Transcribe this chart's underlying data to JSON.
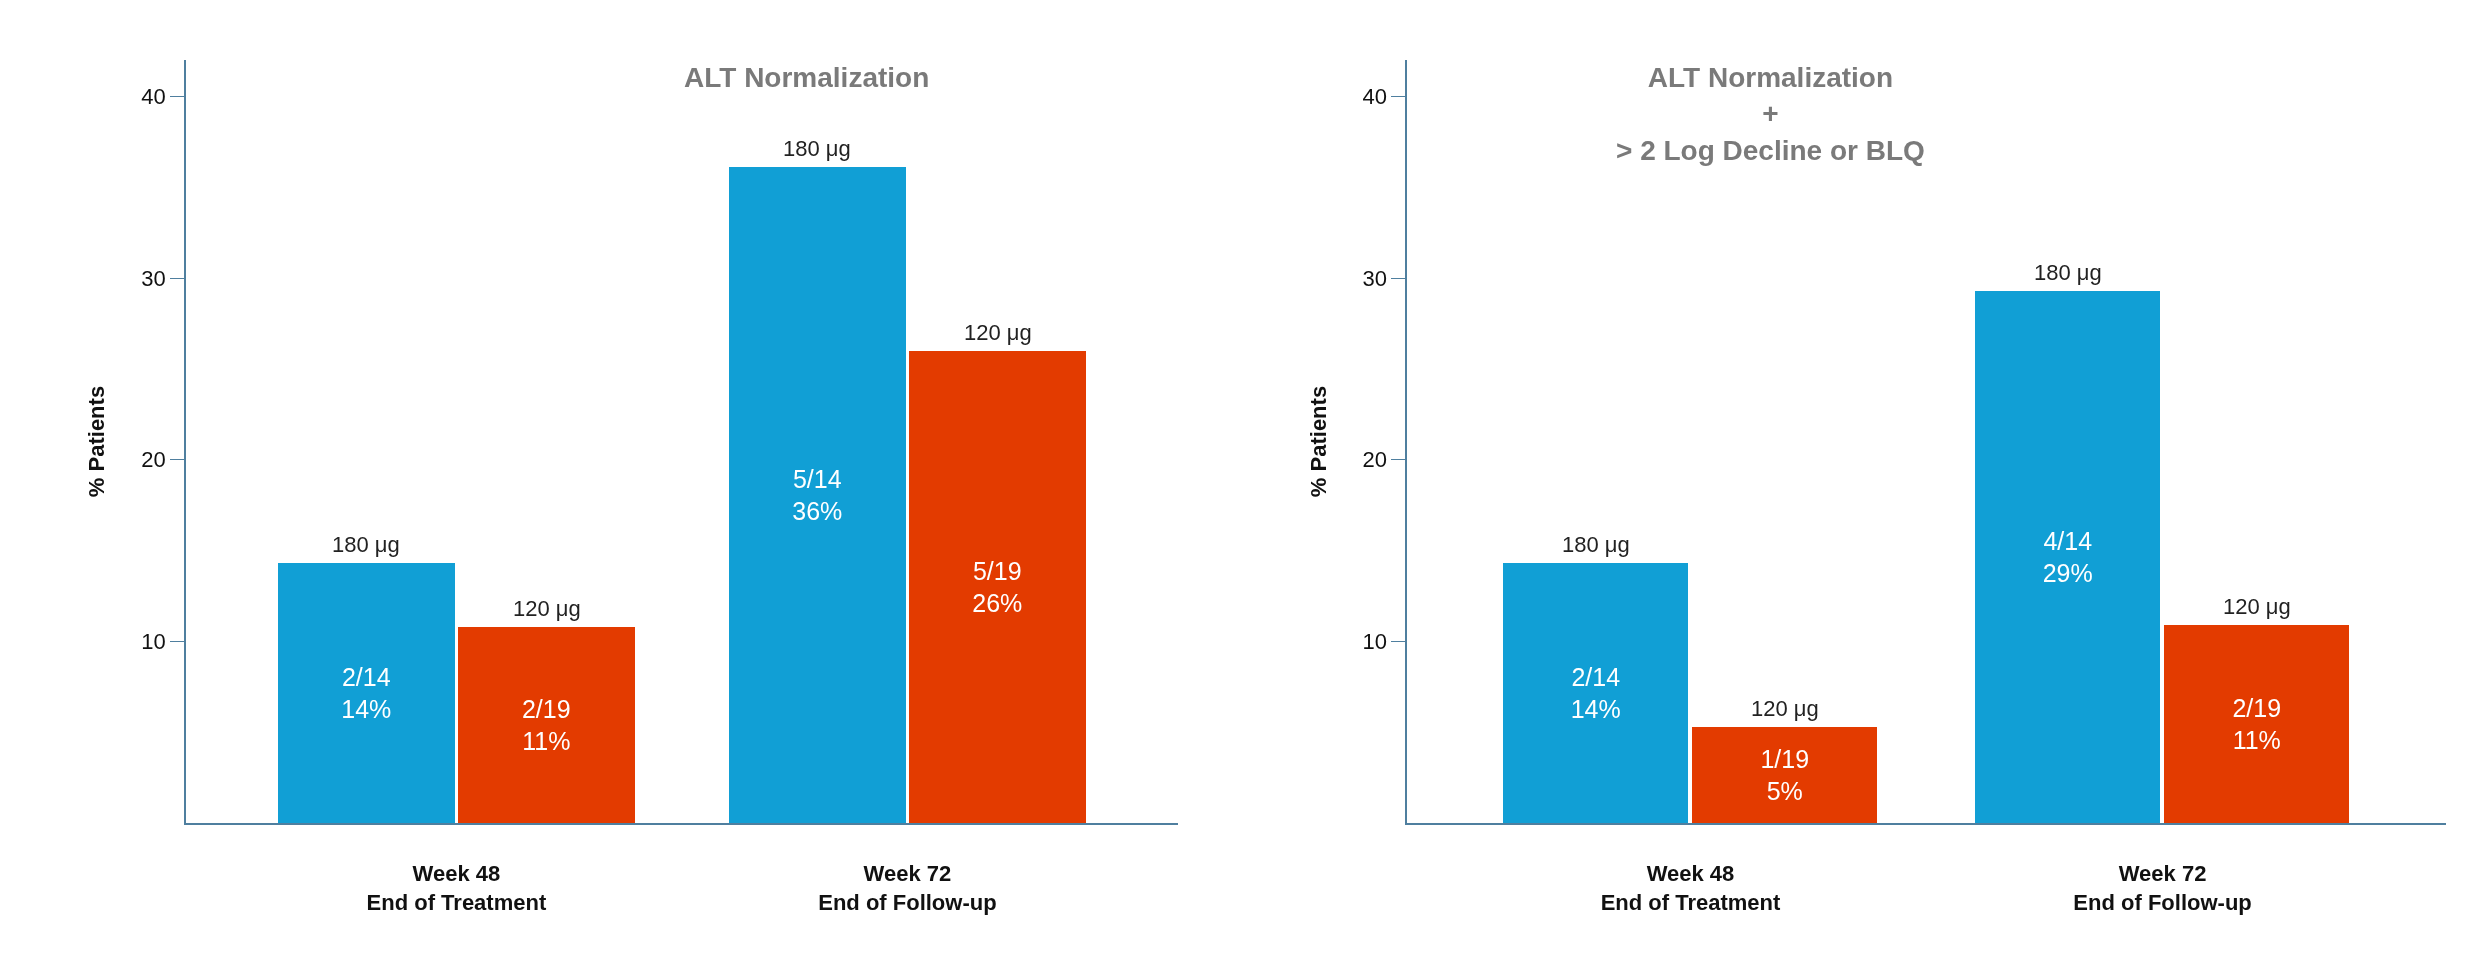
{
  "chart_data": [
    {
      "type": "bar",
      "title": "ALT Normalization",
      "ylabel": "% Patients",
      "categories": [
        "Week 48\nEnd of Treatment",
        "Week 72\nEnd of Follow-up"
      ],
      "series": [
        {
          "name": "180 μg",
          "color": "#119fd5",
          "values": [
            14.3,
            36.1
          ],
          "value_labels": [
            "2/14\n14%",
            "5/14\n36%"
          ]
        },
        {
          "name": "120 μg",
          "color": "#e33b00",
          "values": [
            10.8,
            26.0
          ],
          "value_labels": [
            "2/19\n11%",
            "5/19\n26%"
          ]
        }
      ],
      "ylim": [
        0,
        42
      ],
      "yticks": [
        10,
        20,
        30,
        40
      ]
    },
    {
      "type": "bar",
      "title": "ALT Normalization\n+\n> 2 Log Decline or BLQ",
      "ylabel": "% Patients",
      "categories": [
        "Week 48\nEnd of Treatment",
        "Week 72\nEnd of Follow-up"
      ],
      "series": [
        {
          "name": "180 μg",
          "color": "#119fd5",
          "values": [
            14.3,
            29.3
          ],
          "value_labels": [
            "2/14\n14%",
            "4/14\n29%"
          ]
        },
        {
          "name": "120 μg",
          "color": "#e33b00",
          "values": [
            5.3,
            10.9
          ],
          "value_labels": [
            "1/19\n5%",
            "2/19\n11%"
          ]
        }
      ],
      "ylim": [
        0,
        42
      ],
      "yticks": [
        10,
        20,
        30,
        40
      ]
    }
  ]
}
